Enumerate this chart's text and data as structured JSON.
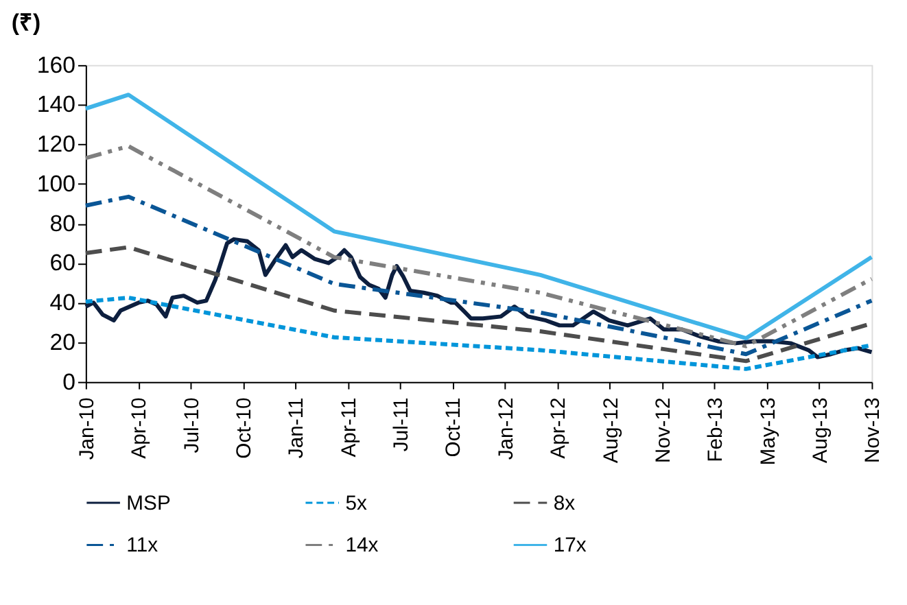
{
  "chart_data": {
    "type": "line",
    "ylabel": "(₹)",
    "ylim": [
      0,
      160
    ],
    "yticks": [
      0,
      20,
      40,
      60,
      80,
      100,
      120,
      140,
      160
    ],
    "xlim": [
      "2010-01-14",
      "2013-11-09"
    ],
    "xticks": [
      {
        "value": "2010-01-14",
        "label": "Jan-10"
      },
      {
        "value": "2010-04-17",
        "label": "Apr-10"
      },
      {
        "value": "2010-07-19",
        "label": "Jul-10"
      },
      {
        "value": "2010-10-20",
        "label": "Oct-10"
      },
      {
        "value": "2011-01-21",
        "label": "Jan-11"
      },
      {
        "value": "2011-04-24",
        "label": "Apr-11"
      },
      {
        "value": "2011-07-26",
        "label": "Jul-11"
      },
      {
        "value": "2011-10-27",
        "label": "Oct-11"
      },
      {
        "value": "2012-01-28",
        "label": "Jan-12"
      },
      {
        "value": "2012-04-30",
        "label": "Apr-12"
      },
      {
        "value": "2012-08-01",
        "label": "Aug-12"
      },
      {
        "value": "2012-11-02",
        "label": "Nov-12"
      },
      {
        "value": "2013-02-03",
        "label": "Feb-13"
      },
      {
        "value": "2013-05-07",
        "label": "May-13"
      },
      {
        "value": "2013-08-08",
        "label": "Aug-13"
      },
      {
        "value": "2013-11-09",
        "label": "Nov-13"
      }
    ],
    "grid": false,
    "legend": "bottom",
    "marker": "none",
    "series": [
      {
        "name": "MSP",
        "color": "#0d1f3f",
        "line_style": "solid",
        "x": [
          "2010-01-14",
          "2010-01-28",
          "2010-02-13",
          "2010-03-05",
          "2010-03-17",
          "2010-04-02",
          "2010-04-18",
          "2010-05-04",
          "2010-05-20",
          "2010-06-05",
          "2010-06-17",
          "2010-07-07",
          "2010-07-31",
          "2010-08-16",
          "2010-09-01",
          "2010-09-09",
          "2010-09-22",
          "2010-10-04",
          "2010-10-28",
          "2010-11-17",
          "2010-11-29",
          "2010-12-15",
          "2011-01-04",
          "2011-01-16",
          "2011-02-01",
          "2011-02-25",
          "2011-03-21",
          "2011-04-06",
          "2011-04-18",
          "2011-04-30",
          "2011-05-16",
          "2011-06-01",
          "2011-06-18",
          "2011-06-30",
          "2011-07-12",
          "2011-07-20",
          "2011-08-01",
          "2011-08-13",
          "2011-09-06",
          "2011-09-30",
          "2011-10-24",
          "2011-11-01",
          "2011-11-17",
          "2011-11-29",
          "2011-12-20",
          "2012-01-21",
          "2012-02-14",
          "2012-03-09",
          "2012-04-10",
          "2012-05-04",
          "2012-05-28",
          "2012-07-03",
          "2012-07-31",
          "2012-09-02",
          "2012-10-12",
          "2012-11-05",
          "2012-12-07",
          "2013-01-08",
          "2013-02-09",
          "2013-03-13",
          "2013-04-14",
          "2013-05-16",
          "2013-06-18",
          "2013-07-20",
          "2013-08-05",
          "2013-08-29",
          "2013-09-22",
          "2013-10-16",
          "2013-11-09"
        ],
        "values": [
          38,
          40,
          34,
          31,
          36,
          38,
          40,
          41,
          39,
          33,
          42.5,
          43.5,
          40,
          41,
          51.5,
          58.5,
          70,
          72,
          71,
          66.5,
          54,
          61,
          69,
          63,
          66.5,
          62,
          60,
          63,
          66.5,
          63,
          53,
          49,
          47,
          42.5,
          54,
          58.5,
          53,
          46,
          45,
          43.5,
          40,
          40,
          35.5,
          32,
          32,
          33,
          38,
          33,
          31,
          28.5,
          28.5,
          35.5,
          31,
          28.5,
          32,
          26.5,
          26.5,
          23,
          20.5,
          19.5,
          20.5,
          20.5,
          19.5,
          16,
          12.5,
          14,
          16,
          17,
          15
        ]
      },
      {
        "name": "5x",
        "color": "#0095da",
        "line_style": "dashed",
        "x": [
          "2010-01-14",
          "2010-03-31",
          "2011-03-31",
          "2012-03-31",
          "2013-03-31",
          "2013-11-09"
        ],
        "values": [
          40.5,
          42.5,
          22.5,
          16,
          6.5,
          18.5
        ]
      },
      {
        "name": "8x",
        "color": "#4d4d4d",
        "line_style": "longdash",
        "x": [
          "2010-01-14",
          "2010-03-31",
          "2011-03-31",
          "2012-03-31",
          "2013-03-31",
          "2013-11-09"
        ],
        "values": [
          65,
          68,
          36,
          25.5,
          10.5,
          29.5
        ]
      },
      {
        "name": "11x",
        "color": "#0a5696",
        "line_style": "dashdot",
        "x": [
          "2010-01-14",
          "2010-03-31",
          "2011-03-31",
          "2012-03-31",
          "2013-03-31",
          "2013-11-09"
        ],
        "values": [
          89,
          93.5,
          49.5,
          35,
          14,
          41
        ]
      },
      {
        "name": "14x",
        "color": "#7f7f7f",
        "line_style": "dashdotdot",
        "x": [
          "2010-01-14",
          "2010-03-31",
          "2011-03-31",
          "2012-03-31",
          "2013-03-31",
          "2013-11-09"
        ],
        "values": [
          113,
          119,
          63,
          45,
          18,
          52
        ]
      },
      {
        "name": "17x",
        "color": "#40b4e8",
        "line_style": "solid",
        "x": [
          "2010-01-14",
          "2010-03-31",
          "2011-03-31",
          "2012-03-31",
          "2013-03-31",
          "2013-11-09"
        ],
        "values": [
          138,
          145,
          76,
          54,
          22,
          63
        ]
      }
    ]
  }
}
